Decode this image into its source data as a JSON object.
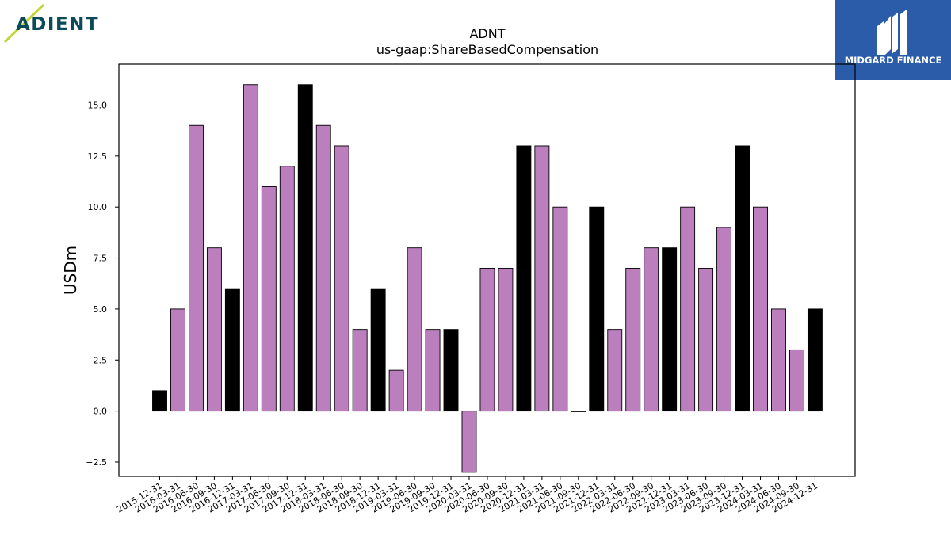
{
  "brand_left": {
    "name": "ADIENT",
    "color": "#0b4a58",
    "accent": "#c2d63a"
  },
  "brand_right": {
    "name": "MIDGARD FINANCE",
    "background": "#2a5caa"
  },
  "colors": {
    "purple_bar": "#bb7fbe",
    "black_bar": "#000000"
  },
  "chart_data": {
    "type": "bar",
    "title": "ADNT",
    "subtitle": "us-gaap:ShareBasedCompensation",
    "xlabel": "",
    "ylabel": "USDm",
    "ylim": [
      -3.2,
      17.0
    ],
    "yticks": [
      "−2.5",
      "0.0",
      "2.5",
      "5.0",
      "7.5",
      "10.0",
      "12.5",
      "15.0"
    ],
    "ytick_values": [
      -2.5,
      0,
      2.5,
      5,
      7.5,
      10,
      12.5,
      15
    ],
    "grid": false,
    "categories": [
      "2015-12-31",
      "2016-03-31",
      "2016-06-30",
      "2016-09-30",
      "2016-12-31",
      "2017-03-31",
      "2017-06-30",
      "2017-09-30",
      "2017-12-31",
      "2018-03-31",
      "2018-06-30",
      "2018-09-30",
      "2018-12-31",
      "2019-03-31",
      "2019-06-30",
      "2019-09-30",
      "2019-12-31",
      "2020-03-31",
      "2020-06-30",
      "2020-09-30",
      "2020-12-31",
      "2021-03-31",
      "2021-06-30",
      "2021-09-30",
      "2021-12-31",
      "2022-03-31",
      "2022-06-30",
      "2022-09-30",
      "2022-12-31",
      "2023-03-31",
      "2023-06-30",
      "2023-09-30",
      "2023-12-31",
      "2024-03-31",
      "2024-06-30",
      "2024-09-30",
      "2024-12-31"
    ],
    "values": [
      1,
      5,
      14,
      8,
      6,
      16,
      11,
      12,
      16,
      14,
      13,
      4,
      6,
      2,
      8,
      4,
      4,
      -3,
      7,
      7,
      13,
      13,
      10,
      0,
      10,
      4,
      7,
      8,
      8,
      10,
      7,
      9,
      13,
      10,
      5,
      3,
      5
    ],
    "bar_colors": [
      "black",
      "purple",
      "purple",
      "purple",
      "black",
      "purple",
      "purple",
      "purple",
      "black",
      "purple",
      "purple",
      "purple",
      "black",
      "purple",
      "purple",
      "purple",
      "black",
      "purple",
      "purple",
      "purple",
      "black",
      "purple",
      "purple",
      "purple",
      "black",
      "purple",
      "purple",
      "purple",
      "black",
      "purple",
      "purple",
      "purple",
      "black",
      "purple",
      "purple",
      "purple",
      "black"
    ]
  }
}
